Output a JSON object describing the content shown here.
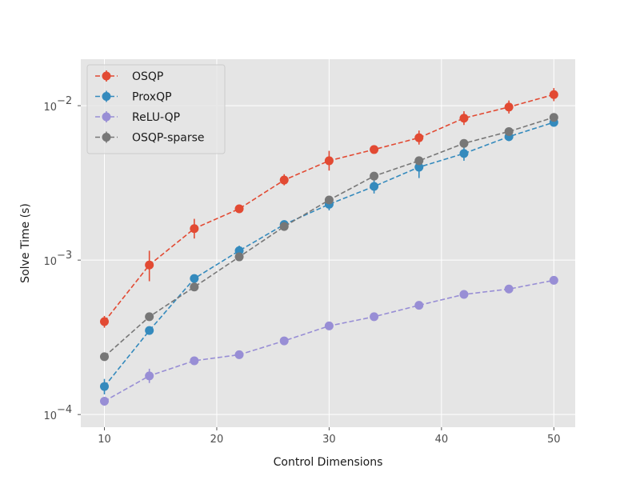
{
  "chart_data": {
    "type": "line",
    "xlabel": "Control Dimensions",
    "ylabel": "Solve Time (s)",
    "yscale": "log",
    "xlim": [
      7.9,
      51.9
    ],
    "ylim": [
      8.28e-05,
      0.02
    ],
    "xticks": [
      10,
      20,
      30,
      40,
      50
    ],
    "xtick_labels": [
      "10",
      "20",
      "30",
      "40",
      "50"
    ],
    "yticks": [
      0.0001,
      0.001,
      0.01
    ],
    "ytick_labels": [
      {
        "base": "10",
        "exp": "−4"
      },
      {
        "base": "10",
        "exp": "−3"
      },
      {
        "base": "10",
        "exp": "−2"
      }
    ],
    "grid": true,
    "legend_position": "upper-left",
    "x": [
      10,
      14,
      18,
      22,
      26,
      30,
      34,
      38,
      42,
      46,
      50
    ],
    "series": [
      {
        "name": "OSQP",
        "color": "#e24a33",
        "linestyle": "dashed",
        "marker": "circle",
        "values": [
          0.0004,
          0.00093,
          0.0016,
          0.00215,
          0.0033,
          0.0044,
          0.0052,
          0.0062,
          0.0083,
          0.0098,
          0.0118
        ],
        "err_low": [
          0.000365,
          0.00073,
          0.00138,
          0.00205,
          0.00305,
          0.0038,
          0.0049,
          0.0056,
          0.0075,
          0.0089,
          0.0107
        ],
        "err_high": [
          0.000435,
          0.00115,
          0.00185,
          0.00225,
          0.0036,
          0.0051,
          0.0055,
          0.0069,
          0.0092,
          0.0108,
          0.013
        ]
      },
      {
        "name": "ProxQP",
        "color": "#348abd",
        "linestyle": "dashed",
        "marker": "circle",
        "values": [
          0.000152,
          0.00035,
          0.00076,
          0.00115,
          0.0017,
          0.0023,
          0.003,
          0.004,
          0.0049,
          0.0063,
          0.0078
        ],
        "err_low": [
          0.000135,
          0.00033,
          0.00072,
          0.00106,
          0.0016,
          0.0021,
          0.0027,
          0.0034,
          0.0044,
          0.0059,
          0.0073
        ],
        "err_high": [
          0.00017,
          0.00037,
          0.0008,
          0.00124,
          0.0018,
          0.0025,
          0.0033,
          0.0045,
          0.0054,
          0.0067,
          0.0083
        ]
      },
      {
        "name": "ReLU-QP",
        "color": "#988ed5",
        "linestyle": "dashed",
        "marker": "circle",
        "values": [
          0.000122,
          0.000178,
          0.000223,
          0.000244,
          0.0003,
          0.000375,
          0.00043,
          0.00051,
          0.0006,
          0.00065,
          0.00074
        ],
        "err_low": [
          0.000114,
          0.00016,
          0.000215,
          0.000235,
          0.00029,
          0.000362,
          0.000418,
          0.000495,
          0.000585,
          0.000635,
          0.000722
        ],
        "err_high": [
          0.00013,
          0.000198,
          0.000232,
          0.000253,
          0.000311,
          0.000388,
          0.000442,
          0.000525,
          0.000615,
          0.000665,
          0.000758
        ]
      },
      {
        "name": "OSQP-sparse",
        "color": "#777777",
        "linestyle": "dashed",
        "marker": "circle",
        "values": [
          0.000237,
          0.00043,
          0.00067,
          0.00105,
          0.00165,
          0.00245,
          0.0035,
          0.0044,
          0.0057,
          0.0068,
          0.0084
        ],
        "err_low": [
          0.000225,
          0.000415,
          0.00064,
          0.00101,
          0.00159,
          0.00236,
          0.00338,
          0.00425,
          0.0055,
          0.0066,
          0.0081
        ],
        "err_high": [
          0.000249,
          0.000445,
          0.0007,
          0.00109,
          0.00171,
          0.00254,
          0.00362,
          0.00455,
          0.0059,
          0.007,
          0.0087
        ]
      }
    ]
  }
}
